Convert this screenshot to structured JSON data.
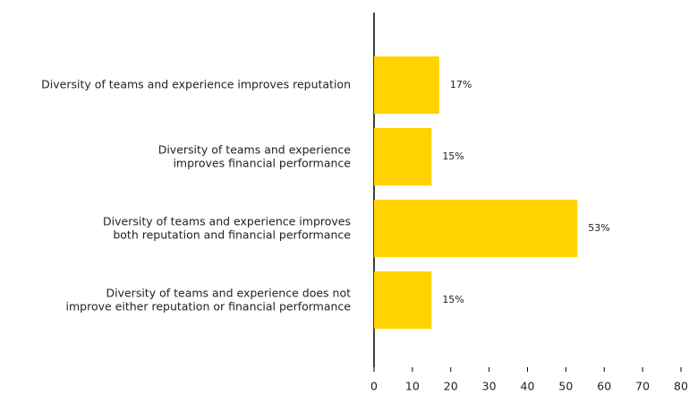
{
  "chart_data": {
    "type": "bar",
    "categories": [
      "Diversity of teams and experience improves reputation",
      "Diversity of teams and experience\nimproves financial performance",
      "Diversity of teams and experience improves\nboth reputation and financial performance",
      "Diversity of teams and experience does not\nimprove either reputation or financial performance"
    ],
    "values": [
      17,
      15,
      53,
      15
    ],
    "value_labels": [
      "17%",
      "15%",
      "53%",
      "15%"
    ],
    "color": "#ffd200",
    "xlim": [
      0,
      80
    ],
    "xticks": [
      0,
      10,
      20,
      30,
      40,
      50,
      60,
      70,
      80
    ],
    "grid": false
  }
}
